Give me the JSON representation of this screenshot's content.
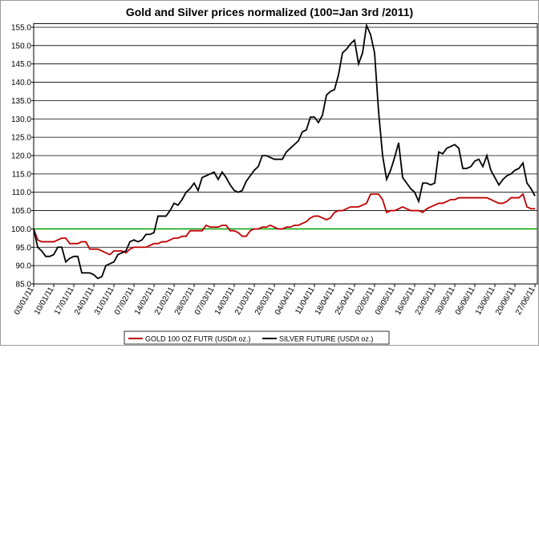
{
  "chart_data": {
    "type": "line",
    "title": "Gold and Silver prices normalized (100=Jan 3rd /2011)",
    "categories": [
      "03/01/11",
      null,
      null,
      null,
      null,
      "10/01/11",
      null,
      null,
      null,
      null,
      "17/01/11",
      null,
      null,
      null,
      null,
      "24/01/11",
      null,
      null,
      null,
      null,
      "31/01/11",
      null,
      null,
      null,
      null,
      "07/02/11",
      null,
      null,
      null,
      null,
      "14/02/11",
      null,
      null,
      null,
      null,
      "21/02/11",
      null,
      null,
      null,
      null,
      "28/02/11",
      null,
      null,
      null,
      null,
      "07/03/11",
      null,
      null,
      null,
      null,
      "14/03/11",
      null,
      null,
      null,
      null,
      "21/03/11",
      null,
      null,
      null,
      null,
      "28/03/11",
      null,
      null,
      null,
      null,
      "04/04/11",
      null,
      null,
      null,
      null,
      "11/04/11",
      null,
      null,
      null,
      null,
      "18/04/11",
      null,
      null,
      null,
      null,
      "25/04/11",
      null,
      null,
      null,
      null,
      "02/05/11",
      null,
      null,
      null,
      null,
      "09/05/11",
      null,
      null,
      null,
      null,
      "16/05/11",
      null,
      null,
      null,
      null,
      "23/05/11",
      null,
      null,
      null,
      null,
      "30/05/11",
      null,
      null,
      null,
      null,
      "06/06/11",
      null,
      null,
      null,
      null,
      "13/06/11",
      null,
      null,
      null,
      null,
      "20/06/11",
      null,
      null,
      null,
      null,
      "27/06/11"
    ],
    "series": [
      {
        "name": "GOLD 100 OZ FUTR (USD/t oz.)",
        "color": "#c00000",
        "values": [
          100,
          97,
          96.5,
          96.5,
          96.5,
          96.5,
          97,
          97.5,
          97.5,
          96,
          96,
          96,
          96.5,
          96.5,
          94.5,
          94.5,
          94.5,
          94,
          93.5,
          93,
          94,
          94,
          94,
          93.5,
          94.5,
          95,
          95,
          95,
          95,
          95.5,
          96,
          96,
          96.5,
          96.5,
          97,
          97.5,
          97.5,
          98,
          98,
          99.5,
          99.5,
          99.5,
          99.5,
          101,
          100.5,
          100.5,
          100.5,
          101,
          101,
          99.5,
          99.5,
          99,
          98,
          98,
          99.5,
          100,
          100,
          100.5,
          100.5,
          101,
          100.5,
          100,
          100,
          100.5,
          100.5,
          101,
          101,
          101.5,
          102,
          103,
          103.5,
          103.5,
          103,
          102.5,
          103,
          104.5,
          105,
          105,
          105.5,
          106,
          106,
          106,
          106.5,
          107,
          109.5,
          109.5,
          109.5,
          108,
          104.5,
          105,
          105,
          105.5,
          106,
          105.5,
          105,
          105,
          105,
          104.5,
          105.5,
          106,
          106.5,
          107,
          107,
          107.5,
          108,
          108,
          108.5,
          108.5,
          108.5,
          108.5,
          108.5,
          108.5,
          108.5,
          108.5,
          108,
          107.5,
          107,
          107,
          107.5,
          108.5,
          108.5,
          108.5,
          109.5,
          106,
          105.5,
          105.5
        ]
      },
      {
        "name": "SILVER FUTURE (USD/t oz.)",
        "color": "#000000",
        "values": [
          100,
          95,
          94,
          92.5,
          92.5,
          93,
          95,
          95,
          91,
          92,
          92.5,
          92.5,
          88,
          88,
          88,
          87.5,
          86.5,
          87,
          90,
          90.5,
          91,
          93,
          93.5,
          94,
          96.5,
          97,
          96.5,
          97,
          98.5,
          98.5,
          99,
          103.5,
          103.5,
          103.5,
          105,
          107,
          106.5,
          108,
          110,
          111,
          112.5,
          110.5,
          114,
          114.5,
          115,
          115.5,
          113.5,
          115.5,
          114,
          112,
          110.5,
          110,
          110.5,
          113,
          114.5,
          116,
          117,
          120,
          120,
          119.5,
          119,
          119,
          119,
          121,
          122,
          123,
          124,
          126.5,
          127,
          130.5,
          130.5,
          129,
          131,
          136.5,
          137.5,
          138,
          142,
          148,
          149,
          150.5,
          151.5,
          145,
          148,
          155.5,
          153,
          148,
          132,
          120,
          113.5,
          116,
          119.5,
          123.5,
          114,
          112.5,
          111,
          110,
          107.5,
          112.5,
          112.5,
          112,
          112.5,
          121,
          120.5,
          122,
          122.5,
          123,
          122,
          116.5,
          116.5,
          117,
          118.5,
          119,
          117,
          120,
          116,
          114,
          112,
          113.5,
          114.5,
          115,
          116,
          116.5,
          118,
          112.5,
          111,
          109
        ]
      }
    ],
    "reference_line": {
      "value": 100,
      "color": "#00a000"
    },
    "ylim": [
      85,
      156
    ],
    "yticks": [
      {
        "value": 85,
        "label": "85.0"
      },
      {
        "value": 90,
        "label": "90.0"
      },
      {
        "value": 95,
        "label": "95.0"
      },
      {
        "value": 100,
        "label": "100.0"
      },
      {
        "value": 105,
        "label": "105.0"
      },
      {
        "value": 110,
        "label": "110.0"
      },
      {
        "value": 115,
        "label": "115.0"
      },
      {
        "value": 120,
        "label": "120.0"
      },
      {
        "value": 125,
        "label": "125.0"
      },
      {
        "value": 130,
        "label": "130.0"
      },
      {
        "value": 135,
        "label": "135.0"
      },
      {
        "value": 140,
        "label": "140.0"
      },
      {
        "value": 145,
        "label": "145.0"
      },
      {
        "value": 150,
        "label": "150.0"
      },
      {
        "value": 155,
        "label": "155.0"
      }
    ],
    "grid": true,
    "legend": "bottom"
  }
}
